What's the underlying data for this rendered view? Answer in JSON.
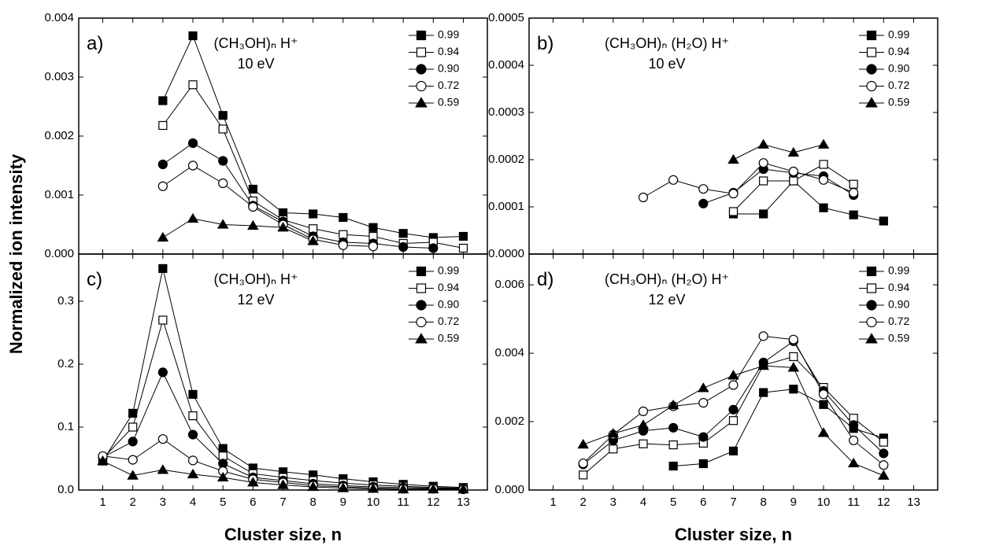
{
  "ylabel": "Normalized ion intensity",
  "chart_data": [
    {
      "type": "line",
      "label": "a)",
      "title": "(CH₃OH)ₙ H⁺",
      "subtitle": "10 eV",
      "legend": "upper right",
      "show_xtick_labels": false,
      "x": [
        1,
        2,
        3,
        4,
        5,
        6,
        7,
        8,
        9,
        10,
        11,
        12,
        13
      ],
      "xlim": [
        0.2,
        13.8
      ],
      "xticks": [
        1,
        2,
        3,
        4,
        5,
        6,
        7,
        8,
        9,
        10,
        11,
        12,
        13
      ],
      "ylim": [
        0,
        0.004
      ],
      "yticks": [
        {
          "value": 0,
          "label": "0.000"
        },
        {
          "value": 0.001,
          "label": "0.001"
        },
        {
          "value": 0.002,
          "label": "0.002"
        },
        {
          "value": 0.003,
          "label": "0.003"
        },
        {
          "value": 0.004,
          "label": "0.004"
        }
      ],
      "series": [
        {
          "name": "0.99",
          "marker": "square-filled",
          "color": "#000000",
          "values": [
            null,
            null,
            0.0026,
            0.0037,
            0.00235,
            0.0011,
            0.0007,
            0.00068,
            0.00062,
            0.00045,
            0.00035,
            0.00028,
            0.0003
          ]
        },
        {
          "name": "0.94",
          "marker": "square-open",
          "color": "#000000",
          "values": [
            null,
            null,
            0.00218,
            0.00287,
            0.00212,
            0.0009,
            0.00058,
            0.00043,
            0.00033,
            0.0003,
            0.00018,
            0.0002,
            0.0001
          ]
        },
        {
          "name": "0.90",
          "marker": "circle-filled",
          "color": "#000000",
          "values": [
            null,
            null,
            0.00152,
            0.00188,
            0.00158,
            0.00082,
            0.00055,
            0.0003,
            0.0002,
            0.00018,
            0.00012,
            0.0001,
            null
          ]
        },
        {
          "name": "0.72",
          "marker": "circle-open",
          "color": "#000000",
          "values": [
            null,
            null,
            0.00115,
            0.0015,
            0.0012,
            0.0008,
            0.0005,
            0.00025,
            0.00015,
            0.00013,
            null,
            null,
            null
          ]
        },
        {
          "name": "0.59",
          "marker": "triangle-filled",
          "color": "#000000",
          "values": [
            null,
            null,
            0.00028,
            0.0006,
            0.0005,
            0.00048,
            0.00045,
            0.00022,
            null,
            null,
            null,
            null,
            null
          ]
        }
      ]
    },
    {
      "type": "line",
      "label": "b)",
      "title": "(CH₃OH)ₙ (H₂O) H⁺",
      "subtitle": "10 eV",
      "legend": "upper right",
      "show_xtick_labels": false,
      "x": [
        1,
        2,
        3,
        4,
        5,
        6,
        7,
        8,
        9,
        10,
        11,
        12,
        13
      ],
      "xlim": [
        0.2,
        13.8
      ],
      "xticks": [
        1,
        2,
        3,
        4,
        5,
        6,
        7,
        8,
        9,
        10,
        11,
        12,
        13
      ],
      "ylim": [
        0,
        0.0005
      ],
      "yticks": [
        {
          "value": 0,
          "label": "0.0000"
        },
        {
          "value": 0.0001,
          "label": "0.0001"
        },
        {
          "value": 0.0002,
          "label": "0.0002"
        },
        {
          "value": 0.0003,
          "label": "0.0003"
        },
        {
          "value": 0.0004,
          "label": "0.0004"
        },
        {
          "value": 0.0005,
          "label": "0.0005"
        }
      ],
      "series": [
        {
          "name": "0.99",
          "marker": "square-filled",
          "color": "#000000",
          "values": [
            null,
            null,
            null,
            null,
            null,
            null,
            8.5e-05,
            8.5e-05,
            0.000155,
            9.8e-05,
            8.3e-05,
            7e-05,
            null
          ]
        },
        {
          "name": "0.94",
          "marker": "square-open",
          "color": "#000000",
          "values": [
            null,
            null,
            null,
            null,
            null,
            null,
            9e-05,
            0.000155,
            0.000155,
            0.00019,
            0.000148,
            null,
            null
          ]
        },
        {
          "name": "0.90",
          "marker": "circle-filled",
          "color": "#000000",
          "values": [
            null,
            null,
            null,
            null,
            null,
            0.000107,
            0.00013,
            0.00018,
            0.000172,
            0.000165,
            0.000125,
            null,
            null
          ]
        },
        {
          "name": "0.72",
          "marker": "circle-open",
          "color": "#000000",
          "values": [
            null,
            null,
            null,
            0.00012,
            0.000157,
            0.000138,
            0.000128,
            0.000193,
            0.000175,
            0.000157,
            0.00013,
            null,
            null
          ]
        },
        {
          "name": "0.59",
          "marker": "triangle-filled",
          "color": "#000000",
          "values": [
            null,
            null,
            null,
            null,
            null,
            null,
            0.0002,
            0.000232,
            0.000215,
            0.000232,
            null,
            null,
            null
          ]
        }
      ]
    },
    {
      "type": "line",
      "label": "c)",
      "title": "(CH₃OH)ₙ H⁺",
      "subtitle": "12 eV",
      "legend": "upper right",
      "show_xtick_labels": true,
      "xlabel": "Cluster size, n",
      "x": [
        1,
        2,
        3,
        4,
        5,
        6,
        7,
        8,
        9,
        10,
        11,
        12,
        13
      ],
      "xlim": [
        0.2,
        13.8
      ],
      "xticks": [
        1,
        2,
        3,
        4,
        5,
        6,
        7,
        8,
        9,
        10,
        11,
        12,
        13
      ],
      "ylim": [
        0,
        0.375
      ],
      "yticks": [
        {
          "value": 0,
          "label": "0.0"
        },
        0.1,
        0.2,
        0.3
      ],
      "series": [
        {
          "name": "0.99",
          "marker": "square-filled",
          "color": "#000000",
          "values": [
            0.046,
            0.122,
            0.352,
            0.152,
            0.066,
            0.035,
            0.029,
            0.024,
            0.018,
            0.013,
            0.009,
            0.006,
            0.004
          ]
        },
        {
          "name": "0.94",
          "marker": "square-open",
          "color": "#000000",
          "values": [
            0.05,
            0.1,
            0.27,
            0.118,
            0.054,
            0.026,
            0.02,
            0.015,
            0.011,
            0.008,
            0.006,
            0.004,
            0.003
          ]
        },
        {
          "name": "0.90",
          "marker": "circle-filled",
          "color": "#000000",
          "values": [
            0.052,
            0.077,
            0.187,
            0.088,
            0.042,
            0.02,
            0.015,
            0.01,
            0.007,
            0.005,
            0.004,
            0.003,
            0.002
          ]
        },
        {
          "name": "0.72",
          "marker": "circle-open",
          "color": "#000000",
          "values": [
            0.054,
            0.048,
            0.081,
            0.047,
            0.03,
            0.017,
            0.012,
            0.007,
            0.005,
            0.003,
            0.002,
            0.002,
            0.001
          ]
        },
        {
          "name": "0.59",
          "marker": "triangle-filled",
          "color": "#000000",
          "values": [
            0.046,
            0.023,
            0.032,
            0.025,
            0.02,
            0.012,
            0.008,
            0.005,
            0.003,
            0.002,
            0.001,
            0.001,
            0.001
          ]
        }
      ]
    },
    {
      "type": "line",
      "label": "d)",
      "title": "(CH₃OH)ₙ (H₂O) H⁺",
      "subtitle": "12 eV",
      "legend": "upper right",
      "show_xtick_labels": true,
      "xlabel": "Cluster size, n",
      "x": [
        1,
        2,
        3,
        4,
        5,
        6,
        7,
        8,
        9,
        10,
        11,
        12,
        13
      ],
      "xlim": [
        0.2,
        13.8
      ],
      "xticks": [
        1,
        2,
        3,
        4,
        5,
        6,
        7,
        8,
        9,
        10,
        11,
        12,
        13
      ],
      "ylim": [
        0,
        0.0069
      ],
      "yticks": [
        {
          "value": 0,
          "label": "0.000"
        },
        0.002,
        0.004,
        0.006
      ],
      "series": [
        {
          "name": "0.99",
          "marker": "square-filled",
          "color": "#000000",
          "values": [
            null,
            null,
            null,
            null,
            0.0007,
            0.00077,
            0.00114,
            0.00285,
            0.00295,
            0.0025,
            0.0018,
            0.00152,
            null
          ]
        },
        {
          "name": "0.94",
          "marker": "square-open",
          "color": "#000000",
          "values": [
            null,
            0.00044,
            0.0012,
            0.00135,
            0.00132,
            0.00137,
            0.00203,
            0.00365,
            0.0039,
            0.003,
            0.0021,
            0.0014,
            null
          ]
        },
        {
          "name": "0.90",
          "marker": "circle-filled",
          "color": "#000000",
          "values": [
            null,
            0.00075,
            0.00145,
            0.00173,
            0.00182,
            0.00155,
            0.00235,
            0.00373,
            0.00435,
            0.0029,
            0.0019,
            0.00107,
            null
          ]
        },
        {
          "name": "0.72",
          "marker": "circle-open",
          "color": "#000000",
          "values": [
            null,
            0.00078,
            0.00162,
            0.0023,
            0.00245,
            0.00255,
            0.00307,
            0.0045,
            0.0044,
            0.0028,
            0.00145,
            0.00073,
            null
          ]
        },
        {
          "name": "0.59",
          "marker": "triangle-filled",
          "color": "#000000",
          "values": [
            null,
            0.00133,
            0.00165,
            0.0019,
            0.00248,
            0.00298,
            0.00335,
            0.00363,
            0.00358,
            0.00167,
            0.00078,
            0.00042,
            null
          ]
        }
      ]
    }
  ]
}
